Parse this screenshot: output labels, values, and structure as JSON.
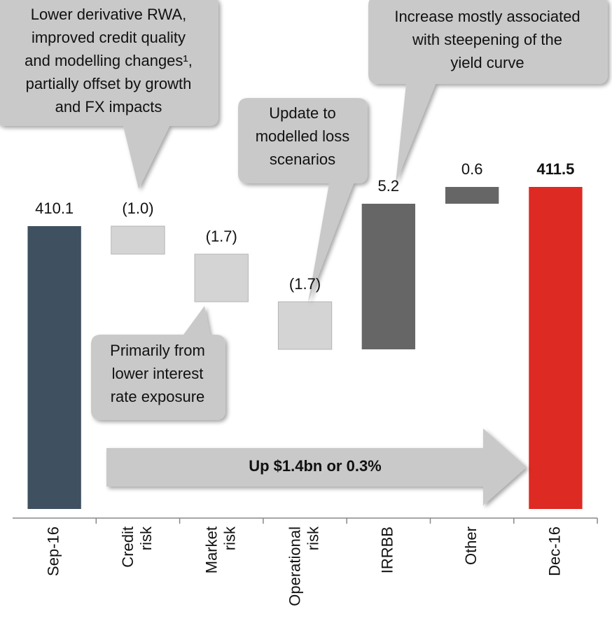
{
  "chart_data": {
    "type": "waterfall",
    "categories": [
      "Sep-16",
      "Credit risk",
      "Market risk",
      "Operational risk",
      "IRRBB",
      "Other",
      "Dec-16"
    ],
    "values": [
      410.1,
      -1.0,
      -1.7,
      -1.7,
      5.2,
      0.6,
      411.5
    ],
    "value_labels": [
      "410.1",
      "(1.0)",
      "(1.7)",
      "(1.7)",
      "5.2",
      "0.6",
      "411.5"
    ],
    "colors": [
      "#3f5060",
      "#d4d4d4",
      "#d4d4d4",
      "#d4d4d4",
      "#666666",
      "#666666",
      "#dd2a22"
    ],
    "ylim": [
      400,
      415
    ],
    "annotations": [
      [
        "Lower derivative RWA,",
        "improved credit quality",
        "and modelling changes¹,",
        "partially offset by growth",
        "and FX impacts"
      ],
      [
        "Update to",
        "modelled loss",
        "scenarios"
      ],
      [
        "Increase mostly associated",
        "with steepening of the",
        "yield curve"
      ],
      [
        "Primarily from",
        "lower interest",
        "rate exposure"
      ],
      [
        "Up $1.4bn or 0.3%"
      ]
    ]
  }
}
